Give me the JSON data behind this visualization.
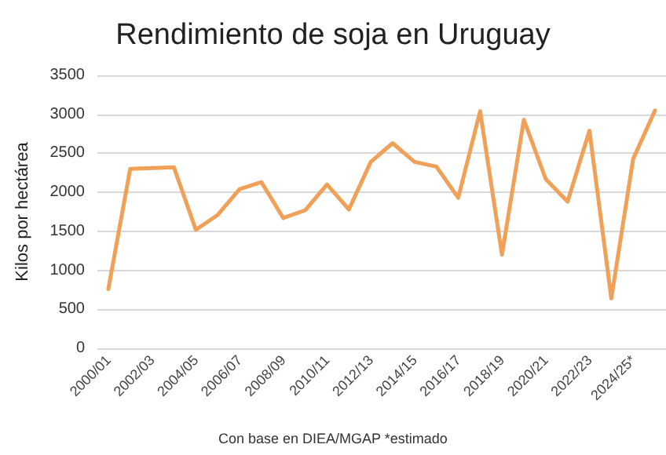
{
  "chart_data": {
    "type": "line",
    "title": "Rendimiento de soja en Uruguay",
    "ylabel": "Kilos por hectárea",
    "categories": [
      "2000/01",
      null,
      "2002/03",
      null,
      "2004/05",
      null,
      "2006/07",
      null,
      "2008/09",
      null,
      "2010/11",
      null,
      "2012/13",
      null,
      "2014/15",
      null,
      "2016/17",
      null,
      "2018/19",
      null,
      "2020/21",
      null,
      "2022/23",
      null,
      "2024/25*",
      null
    ],
    "series": [
      {
        "color": "#f0a057",
        "values": [
          760,
          2300,
          2310,
          2320,
          1520,
          1710,
          2040,
          2130,
          1670,
          1770,
          2100,
          1780,
          2390,
          2630,
          2390,
          2330,
          1930,
          3040,
          1200,
          2930,
          2170,
          1880,
          2790,
          640,
          2430,
          3050
        ]
      }
    ],
    "ylim": [
      0,
      3500
    ],
    "yticks": [
      0,
      500,
      1000,
      1500,
      2000,
      2500,
      3000,
      3500
    ],
    "grid": "y",
    "marker": "none",
    "line_style": "solid",
    "annotations": [
      "Con base en DIEA/MGAP *estimado"
    ]
  }
}
